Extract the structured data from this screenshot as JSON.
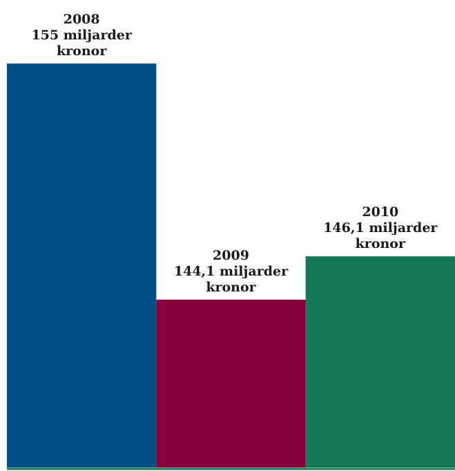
{
  "chart_data": {
    "type": "bar",
    "categories": [
      "2008",
      "2009",
      "2010"
    ],
    "values": [
      155,
      144.1,
      146.1
    ],
    "unit": "miljarder kronor",
    "data_labels": [
      [
        "2008",
        "155 miljarder",
        "kronor"
      ],
      [
        "2009",
        "144,1 miljarder",
        "kronor"
      ],
      [
        "2010",
        "146,1 miljarder",
        "kronor"
      ]
    ],
    "colors": [
      "#004f86",
      "#85003a",
      "#147857"
    ],
    "baseline_color": "#147857",
    "ylim": [
      136.35,
      155
    ]
  }
}
